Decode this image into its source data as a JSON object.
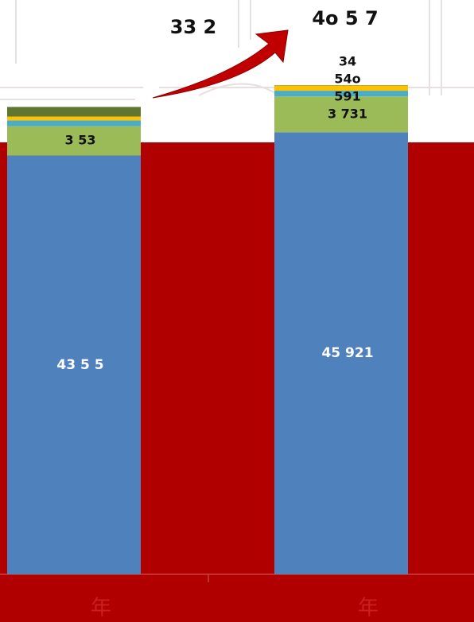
{
  "chart_data": {
    "type": "stacked_bar",
    "categories": [
      "年",
      "年"
    ],
    "series": [
      {
        "name": null,
        "color": "#4f81bd",
        "values": [
          43505,
          45921
        ],
        "value_labels": [
          "43 5 5",
          "45 921"
        ]
      },
      {
        "name": null,
        "color": "#9bbb59",
        "values": [
          3053,
          3731
        ],
        "value_labels": [
          "3 53",
          "3 731"
        ]
      },
      {
        "name": null,
        "color": "#4bacc6",
        "values": [
          600,
          591
        ],
        "value_labels": [
          null,
          "591"
        ]
      },
      {
        "name": null,
        "color": "#ffc000",
        "values": [
          400,
          540
        ],
        "value_labels": [
          null,
          "54o"
        ]
      },
      {
        "name": null,
        "color": "#5f7530",
        "values": [
          1000,
          34
        ],
        "value_labels": [
          null,
          "34"
        ]
      }
    ],
    "annotations": [
      "33 2",
      "4o 5 7"
    ],
    "ylim": [
      0,
      50000
    ]
  }
}
